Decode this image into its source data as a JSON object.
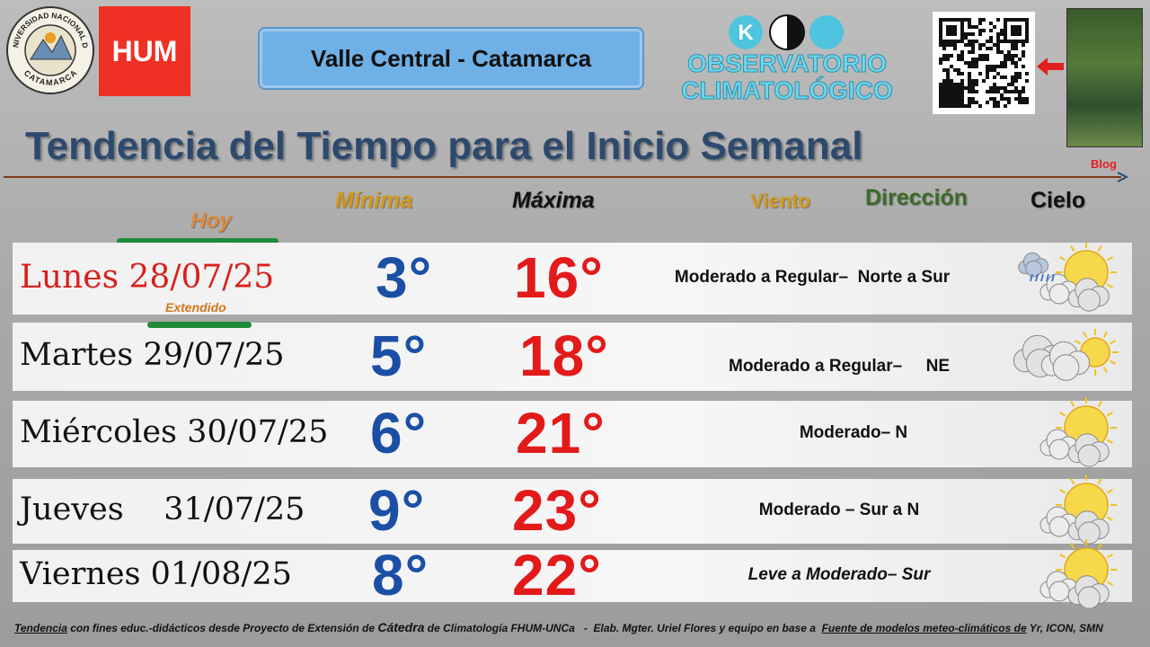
{
  "logos": {
    "university": [
      "UNIVERSIDAD NACIONAL DE",
      "CATAMARCA"
    ],
    "faculty": "HUM"
  },
  "region": "Valle Central - Catamarca",
  "observatory": [
    "OBSERVATORIO",
    "CLIMATOLÓGICO"
  ],
  "blog": "Blog",
  "title": "Tendencia del Tiempo para el Inicio Semanal",
  "headers": {
    "min": "Mínima",
    "max": "Máxima",
    "wind": "Viento",
    "direction": "Dirección",
    "sky": "Cielo"
  },
  "today": "Hoy",
  "extended": "Extendido",
  "rows": [
    {
      "day": "Lunes",
      "date": "28/07/25",
      "min": "3°",
      "max": "16°",
      "wind": "Moderado a Regular–  Norte a Sur"
    },
    {
      "day": "Martes",
      "date": "29/07/25",
      "min": "5°",
      "max": "18°",
      "wind": "Moderado a Regular–     NE"
    },
    {
      "day": "Miércoles",
      "date": "30/07/25",
      "min": "6°",
      "max": "21°",
      "wind": "Moderado– N"
    },
    {
      "day": "Jueves",
      "date": "31/07/25",
      "min": "9°",
      "max": "23°",
      "wind": "Moderado – Sur a N"
    },
    {
      "day": "Viernes",
      "date": "01/08/25",
      "min": "8°",
      "max": "22°",
      "wind": "Leve a Moderado– Sur"
    }
  ],
  "footer": [
    "Tendencia",
    " con fines educ.-didácticos desde Proyecto de Extensión de ",
    "Cátedra",
    " de Climatología FHUM-UNCa",
    "   -  Elab. Mgter. Uriel Flores y equipo en base a  ",
    "Fuente de modelos meteo-climáticos de",
    " Yr, ICON, SMN"
  ]
}
